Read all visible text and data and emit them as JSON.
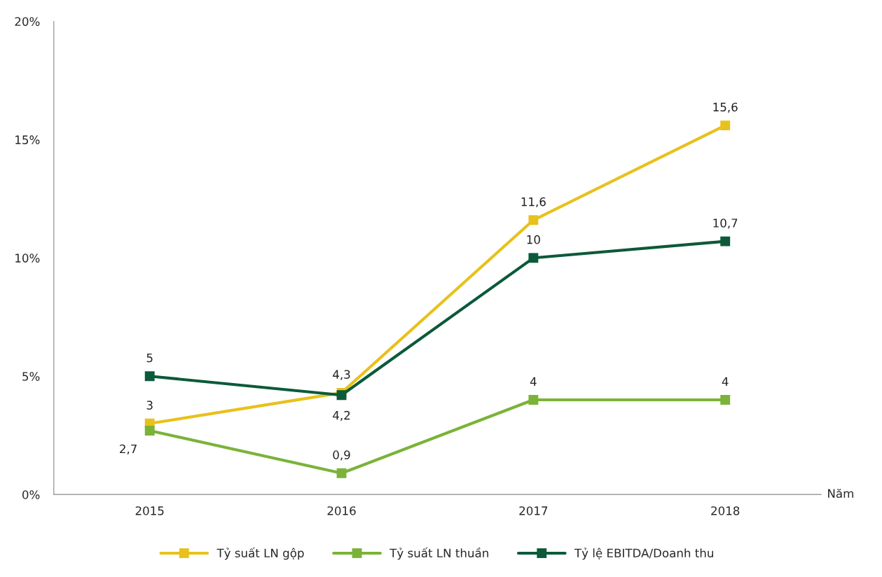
{
  "chart_data": {
    "type": "line",
    "xlabel": "Năm",
    "categories": [
      "2015",
      "2016",
      "2017",
      "2018"
    ],
    "series": [
      {
        "name": "Tỷ suất LN gộp",
        "color": "#e8c11c",
        "values": [
          3,
          4.3,
          11.6,
          15.6
        ],
        "value_labels": [
          "3",
          "4,3",
          "11,6",
          "15,6"
        ]
      },
      {
        "name": "Tỷ suất LN thuần",
        "color": "#7ab338",
        "values": [
          2.7,
          0.9,
          4,
          4
        ],
        "value_labels": [
          "2,7",
          "0,9",
          "4",
          "4"
        ]
      },
      {
        "name": "Tỷ lệ EBITDA/Doanh thu",
        "color": "#0b5a3a",
        "values": [
          5,
          4.2,
          10,
          10.7
        ],
        "value_labels": [
          "5",
          "4,2",
          "10",
          "10,7"
        ]
      }
    ],
    "ylim": [
      0,
      20
    ],
    "yticks": [
      {
        "value": 0,
        "label": "0%"
      },
      {
        "value": 5,
        "label": "5%"
      },
      {
        "value": 10,
        "label": "10%"
      },
      {
        "value": 15,
        "label": "15%"
      },
      {
        "value": 20,
        "label": "20%"
      }
    ],
    "grid": false,
    "legend": "bottom",
    "marker": "square",
    "line_style": "solid"
  }
}
